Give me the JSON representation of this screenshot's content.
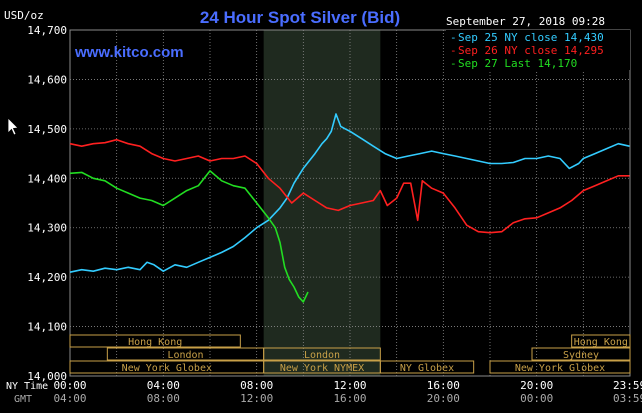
{
  "title": "24 Hour Spot Silver (Bid)",
  "unit_label": "USD/oz",
  "timestamp": "September 27, 2018 09:28",
  "watermark": "www.kitco.com",
  "timezone_labels": {
    "primary": "NY Time",
    "secondary": "GMT"
  },
  "colors": {
    "background": "#000000",
    "grid": "#8a8a8a",
    "highlight": "#1f2a1f",
    "title": "#4a6dff",
    "watermark": "#4a6dff",
    "text": "#ffffff",
    "session_box": "#c8a048",
    "cursor": "#ffffff"
  },
  "chart_data": {
    "type": "line",
    "title": "24 Hour Spot Silver (Bid)",
    "ylabel": "USD/oz",
    "ylim": [
      14000,
      14700
    ],
    "xlim": [
      0,
      24
    ],
    "grid": true,
    "legend_position": "top-right",
    "y_ticks": [
      {
        "value": 14000,
        "label": "14,000"
      },
      {
        "value": 14100,
        "label": "14,100"
      },
      {
        "value": 14200,
        "label": "14,200"
      },
      {
        "value": 14300,
        "label": "14,300"
      },
      {
        "value": 14400,
        "label": "14,400"
      },
      {
        "value": 14500,
        "label": "14,500"
      },
      {
        "value": 14600,
        "label": "14,600"
      },
      {
        "value": 14700,
        "label": "14,700"
      }
    ],
    "x_ticks": [
      {
        "value": 0,
        "ny": "00:00",
        "gmt": "04:00"
      },
      {
        "value": 4,
        "ny": "04:00",
        "gmt": "08:00"
      },
      {
        "value": 8,
        "ny": "08:00",
        "gmt": "12:00"
      },
      {
        "value": 12,
        "ny": "12:00",
        "gmt": "16:00"
      },
      {
        "value": 16,
        "ny": "16:00",
        "gmt": "20:00"
      },
      {
        "value": 20,
        "ny": "20:00",
        "gmt": "00:00"
      },
      {
        "value": 23.98,
        "ny": "23:59",
        "gmt": "03:59"
      }
    ],
    "highlight_range": [
      8.3,
      13.3
    ],
    "series": [
      {
        "name": "Sep 25 NY close 14,430",
        "color": "#33ccff",
        "points": [
          [
            0,
            14210
          ],
          [
            0.5,
            14215
          ],
          [
            1,
            14212
          ],
          [
            1.5,
            14218
          ],
          [
            2,
            14215
          ],
          [
            2.5,
            14220
          ],
          [
            3,
            14215
          ],
          [
            3.3,
            14230
          ],
          [
            3.6,
            14225
          ],
          [
            4,
            14212
          ],
          [
            4.5,
            14225
          ],
          [
            5,
            14220
          ],
          [
            5.5,
            14230
          ],
          [
            6,
            14240
          ],
          [
            6.5,
            14250
          ],
          [
            7,
            14262
          ],
          [
            7.5,
            14280
          ],
          [
            8,
            14300
          ],
          [
            8.5,
            14315
          ],
          [
            9,
            14340
          ],
          [
            9.3,
            14360
          ],
          [
            9.6,
            14390
          ],
          [
            10,
            14420
          ],
          [
            10.5,
            14450
          ],
          [
            10.8,
            14470
          ],
          [
            11,
            14480
          ],
          [
            11.2,
            14495
          ],
          [
            11.4,
            14530
          ],
          [
            11.6,
            14505
          ],
          [
            11.8,
            14500
          ],
          [
            12,
            14495
          ],
          [
            12.5,
            14480
          ],
          [
            13,
            14465
          ],
          [
            13.5,
            14450
          ],
          [
            14,
            14440
          ],
          [
            14.5,
            14445
          ],
          [
            15,
            14450
          ],
          [
            15.5,
            14455
          ],
          [
            16,
            14450
          ],
          [
            16.5,
            14445
          ],
          [
            17,
            14440
          ],
          [
            17.5,
            14435
          ],
          [
            18,
            14430
          ],
          [
            18.5,
            14430
          ],
          [
            19,
            14432
          ],
          [
            19.5,
            14440
          ],
          [
            20,
            14440
          ],
          [
            20.5,
            14445
          ],
          [
            21,
            14440
          ],
          [
            21.4,
            14420
          ],
          [
            21.8,
            14430
          ],
          [
            22,
            14440
          ],
          [
            22.5,
            14450
          ],
          [
            23,
            14460
          ],
          [
            23.5,
            14470
          ],
          [
            23.98,
            14465
          ]
        ]
      },
      {
        "name": "Sep 26 NY close 14,295",
        "color": "#ff2020",
        "points": [
          [
            0,
            14470
          ],
          [
            0.5,
            14465
          ],
          [
            1,
            14470
          ],
          [
            1.5,
            14472
          ],
          [
            2,
            14478
          ],
          [
            2.5,
            14470
          ],
          [
            3,
            14465
          ],
          [
            3.5,
            14450
          ],
          [
            4,
            14440
          ],
          [
            4.5,
            14435
          ],
          [
            5,
            14440
          ],
          [
            5.5,
            14445
          ],
          [
            6,
            14435
          ],
          [
            6.5,
            14440
          ],
          [
            7,
            14440
          ],
          [
            7.5,
            14445
          ],
          [
            8,
            14430
          ],
          [
            8.5,
            14400
          ],
          [
            9,
            14380
          ],
          [
            9.5,
            14350
          ],
          [
            10,
            14370
          ],
          [
            10.5,
            14355
          ],
          [
            11,
            14340
          ],
          [
            11.5,
            14335
          ],
          [
            12,
            14345
          ],
          [
            12.5,
            14350
          ],
          [
            13,
            14355
          ],
          [
            13.3,
            14375
          ],
          [
            13.6,
            14345
          ],
          [
            14,
            14360
          ],
          [
            14.3,
            14390
          ],
          [
            14.6,
            14390
          ],
          [
            14.9,
            14315
          ],
          [
            15.1,
            14395
          ],
          [
            15.5,
            14380
          ],
          [
            16,
            14370
          ],
          [
            16.5,
            14340
          ],
          [
            17,
            14305
          ],
          [
            17.5,
            14292
          ],
          [
            18,
            14290
          ],
          [
            18.5,
            14292
          ],
          [
            19,
            14310
          ],
          [
            19.5,
            14318
          ],
          [
            20,
            14320
          ],
          [
            20.5,
            14330
          ],
          [
            21,
            14340
          ],
          [
            21.5,
            14355
          ],
          [
            22,
            14375
          ],
          [
            22.5,
            14385
          ],
          [
            23,
            14395
          ],
          [
            23.5,
            14405
          ],
          [
            23.98,
            14405
          ]
        ]
      },
      {
        "name": "Sep 27 Last 14,170",
        "color": "#22dd22",
        "points": [
          [
            0,
            14410
          ],
          [
            0.5,
            14412
          ],
          [
            1,
            14400
          ],
          [
            1.5,
            14395
          ],
          [
            2,
            14380
          ],
          [
            2.5,
            14370
          ],
          [
            3,
            14360
          ],
          [
            3.5,
            14355
          ],
          [
            4,
            14345
          ],
          [
            4.5,
            14360
          ],
          [
            5,
            14375
          ],
          [
            5.5,
            14385
          ],
          [
            6,
            14415
          ],
          [
            6.5,
            14395
          ],
          [
            7,
            14385
          ],
          [
            7.5,
            14380
          ],
          [
            8,
            14350
          ],
          [
            8.5,
            14320
          ],
          [
            8.8,
            14300
          ],
          [
            9,
            14270
          ],
          [
            9.2,
            14220
          ],
          [
            9.4,
            14195
          ],
          [
            9.6,
            14180
          ],
          [
            9.8,
            14160
          ],
          [
            10,
            14150
          ],
          [
            10.2,
            14170
          ]
        ]
      }
    ],
    "sessions": [
      {
        "name": "Hong Kong",
        "row": 0,
        "start": 0,
        "end": 7.3
      },
      {
        "name": "Hong Kong",
        "row": 0,
        "start": 21.5,
        "end": 24
      },
      {
        "name": "London",
        "row": 1,
        "start": 1.6,
        "end": 8.3
      },
      {
        "name": "London",
        "row": 1,
        "start": 8.3,
        "end": 13.3
      },
      {
        "name": "Sydney",
        "row": 1,
        "start": 19.8,
        "end": 24
      },
      {
        "name": "New York Globex",
        "row": 2,
        "start": 0,
        "end": 8.3
      },
      {
        "name": "New York NYMEX",
        "row": 2,
        "start": 8.3,
        "end": 13.3
      },
      {
        "name": "NY Globex",
        "row": 2,
        "start": 13.3,
        "end": 17.3
      },
      {
        "name": "New York Globex",
        "row": 2,
        "start": 18,
        "end": 24
      }
    ]
  }
}
